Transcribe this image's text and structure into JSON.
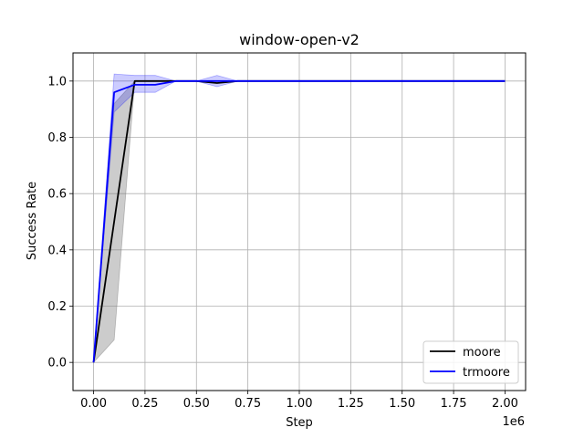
{
  "chart_data": {
    "type": "line",
    "title": "window-open-v2",
    "xlabel": "Step",
    "ylabel": "Success Rate",
    "x_offset_label": "1e6",
    "xlim": [
      -0.1,
      2.1
    ],
    "ylim": [
      -0.1,
      1.1
    ],
    "x_ticks": [
      0.0,
      0.25,
      0.5,
      0.75,
      1.0,
      1.25,
      1.5,
      1.75,
      2.0
    ],
    "x_tick_labels": [
      "0.00",
      "0.25",
      "0.50",
      "0.75",
      "1.00",
      "1.25",
      "1.50",
      "1.75",
      "2.00"
    ],
    "y_ticks": [
      0.0,
      0.2,
      0.4,
      0.6,
      0.8,
      1.0
    ],
    "y_tick_labels": [
      "0.0",
      "0.2",
      "0.4",
      "0.6",
      "0.8",
      "1.0"
    ],
    "grid": true,
    "legend_position": "bottom-right",
    "series": [
      {
        "name": "moore",
        "color": "#000000",
        "band_color": "#808080",
        "x": [
          0,
          0.1,
          0.2,
          0.3,
          0.4,
          0.5,
          0.6,
          0.7,
          0.8,
          0.9,
          1.0,
          1.1,
          1.2,
          1.3,
          1.4,
          1.5,
          1.6,
          1.7,
          1.8,
          1.9,
          2.0
        ],
        "y": [
          0,
          0.5,
          1.0,
          1.0,
          1.0,
          1.0,
          0.993,
          1.0,
          1.0,
          1.0,
          1.0,
          1.0,
          1.0,
          1.0,
          1.0,
          1.0,
          1.0,
          1.0,
          1.0,
          1.0,
          1.0
        ],
        "lower": [
          0,
          0.08,
          1.0,
          1.0,
          1.0,
          1.0,
          0.993,
          1.0,
          1.0,
          1.0,
          1.0,
          1.0,
          1.0,
          1.0,
          1.0,
          1.0,
          1.0,
          1.0,
          1.0,
          1.0,
          1.0
        ],
        "upper": [
          0,
          0.92,
          1.0,
          1.0,
          1.0,
          1.0,
          0.993,
          1.0,
          1.0,
          1.0,
          1.0,
          1.0,
          1.0,
          1.0,
          1.0,
          1.0,
          1.0,
          1.0,
          1.0,
          1.0,
          1.0
        ]
      },
      {
        "name": "trmoore",
        "color": "#0000ff",
        "band_color": "#0000ff",
        "x": [
          0,
          0.1,
          0.2,
          0.3,
          0.4,
          0.5,
          0.6,
          0.7,
          0.8,
          0.9,
          1.0,
          1.1,
          1.2,
          1.3,
          1.4,
          1.5,
          1.6,
          1.7,
          1.8,
          1.9,
          2.0
        ],
        "y": [
          0,
          0.96,
          0.987,
          0.987,
          1.0,
          1.0,
          1.0,
          1.0,
          1.0,
          1.0,
          1.0,
          1.0,
          1.0,
          1.0,
          1.0,
          1.0,
          1.0,
          1.0,
          1.0,
          1.0,
          1.0
        ],
        "lower": [
          0,
          0.89,
          0.96,
          0.96,
          1.0,
          1.0,
          0.98,
          1.0,
          1.0,
          1.0,
          1.0,
          1.0,
          1.0,
          1.0,
          1.0,
          1.0,
          1.0,
          1.0,
          1.0,
          1.0,
          1.0
        ],
        "upper": [
          0,
          1.025,
          1.02,
          1.02,
          1.0,
          1.0,
          1.02,
          1.0,
          1.0,
          1.0,
          1.0,
          1.0,
          1.0,
          1.0,
          1.0,
          1.0,
          1.0,
          1.0,
          1.0,
          1.0,
          1.0
        ]
      }
    ]
  }
}
